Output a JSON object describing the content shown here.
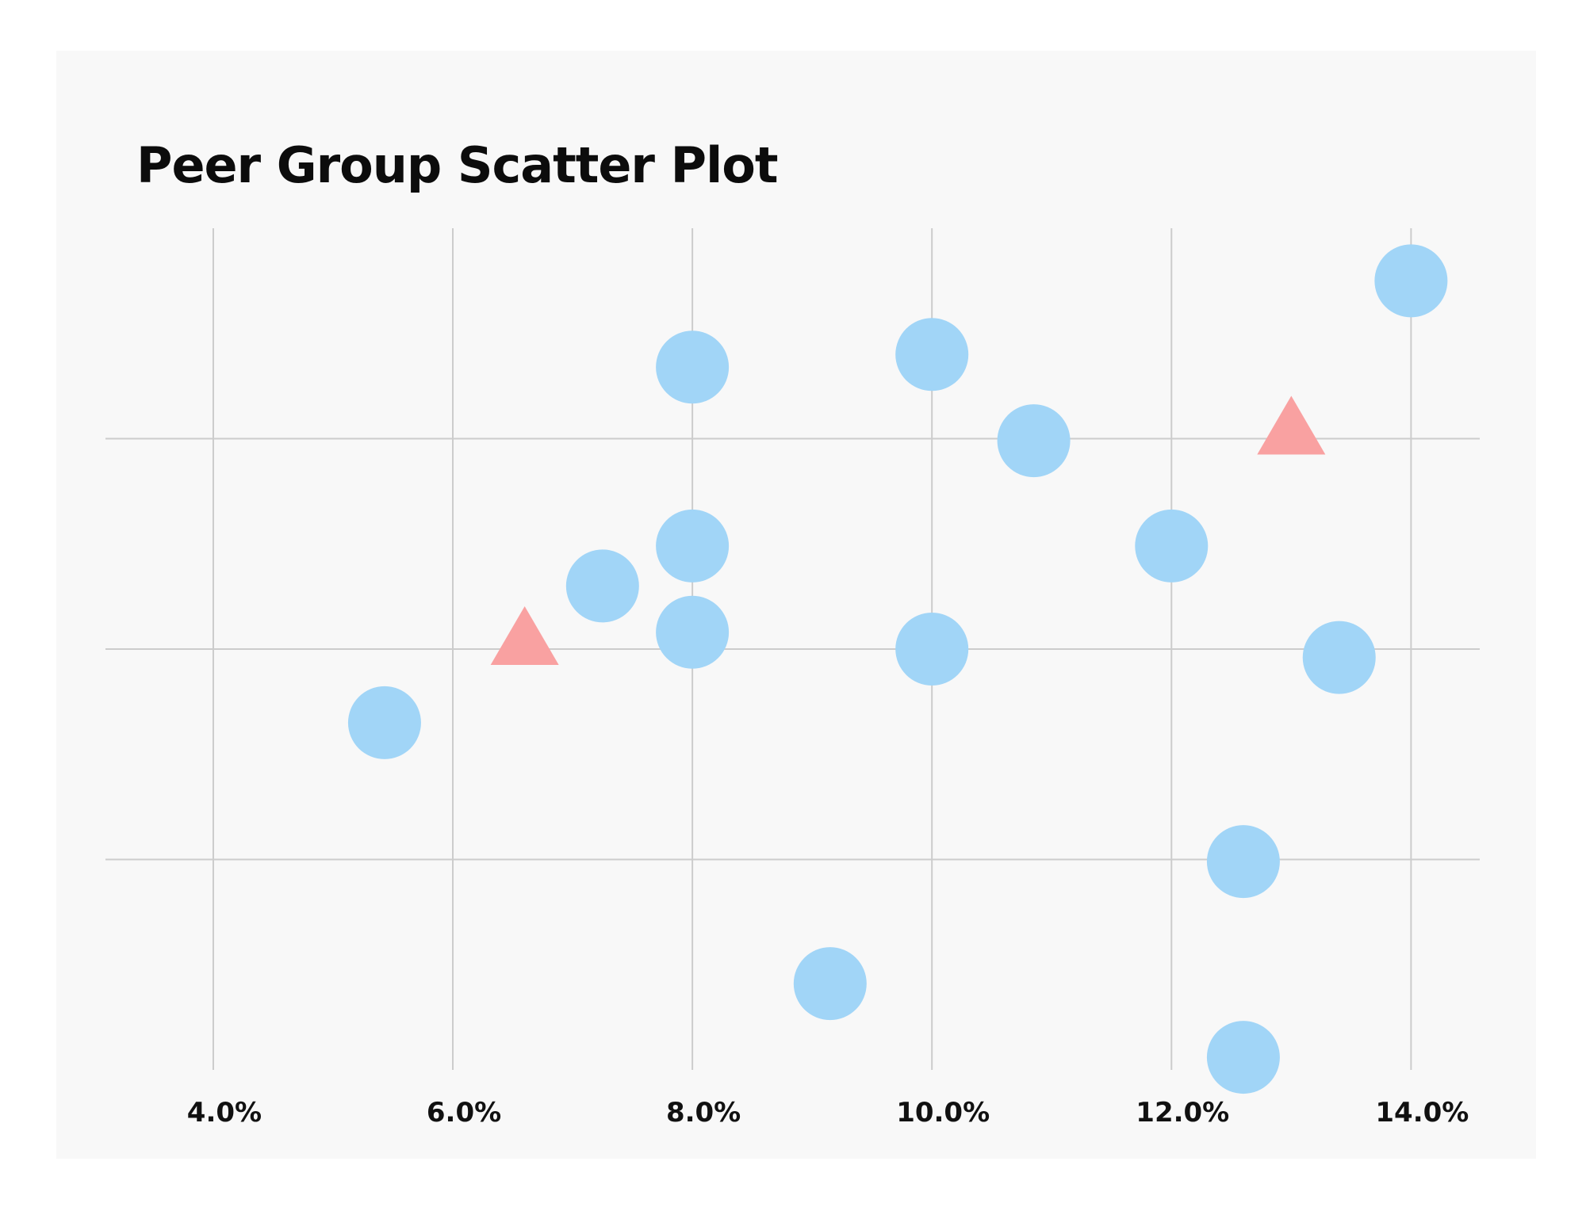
{
  "chart_data": {
    "type": "scatter",
    "title": "Peer Group Scatter Plot",
    "xlabel": "",
    "ylabel": "",
    "x_tick_labels": [
      "4.0%",
      "6.0%",
      "8.0%",
      "10.0%",
      "12.0%",
      "14.0%"
    ],
    "x_ticks": [
      4,
      6,
      8,
      10,
      12,
      14
    ],
    "xlim": [
      3.1,
      14.6
    ],
    "ylim": [
      0,
      4
    ],
    "y_gridlines": [
      1,
      2,
      3
    ],
    "y_tick_labels": [],
    "grid": true,
    "legend": "none",
    "series": [
      {
        "marker": "circle",
        "color": "#a1d5f7",
        "points": [
          {
            "x": 8.0,
            "y": 3.34
          },
          {
            "x": 10.0,
            "y": 3.4
          },
          {
            "x": 14.0,
            "y": 3.75
          },
          {
            "x": 10.85,
            "y": 2.99
          },
          {
            "x": 8.0,
            "y": 2.49
          },
          {
            "x": 12.0,
            "y": 2.49
          },
          {
            "x": 7.25,
            "y": 2.3
          },
          {
            "x": 8.0,
            "y": 2.08
          },
          {
            "x": 10.0,
            "y": 2.0
          },
          {
            "x": 13.4,
            "y": 1.96
          },
          {
            "x": 5.43,
            "y": 1.65
          },
          {
            "x": 12.6,
            "y": 0.99
          },
          {
            "x": 9.15,
            "y": 0.41
          },
          {
            "x": 12.6,
            "y": 0.06
          }
        ]
      },
      {
        "marker": "triangle",
        "color": "#f9a1a1",
        "points": [
          {
            "x": 13.0,
            "y": 3.0
          },
          {
            "x": 6.6,
            "y": 2.0
          }
        ]
      }
    ]
  }
}
